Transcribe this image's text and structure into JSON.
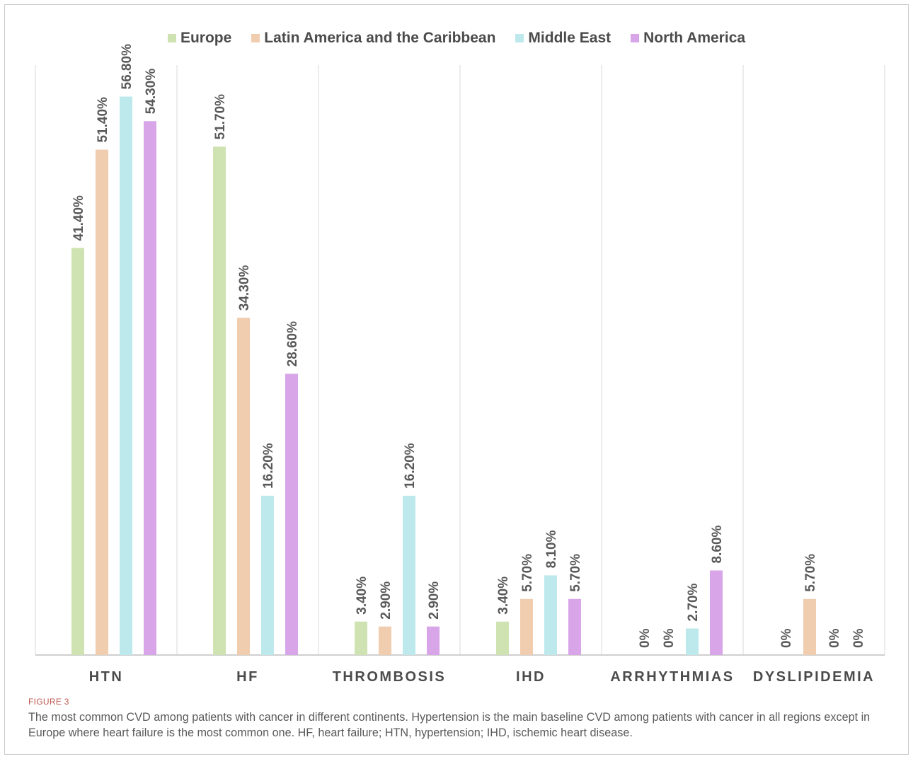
{
  "figure_label": "FIGURE 3",
  "caption": "The most common CVD among patients with cancer in different continents. Hypertension is the main baseline CVD among patients with cancer in all regions except in Europe where heart failure is the most common one. HF, heart failure; HTN, hypertension; IHD, ischemic heart disease.",
  "colors": {
    "Europe": "#cfe2b2",
    "Latin America and the Caribbean": "#f1cdaf",
    "Middle East": "#bde9ec",
    "North America": "#d8a6e8"
  },
  "chart_data": {
    "type": "bar",
    "categories": [
      "HTN",
      "HF",
      "THROMBOSIS",
      "IHD",
      "ARRHYTHMIAS",
      "DYSLIPIDEMIA"
    ],
    "series": [
      {
        "name": "Europe",
        "values": [
          41.4,
          51.7,
          3.4,
          3.4,
          0,
          0
        ],
        "labels": [
          "41.40%",
          "51.70%",
          "3.40%",
          "3.40%",
          "0%",
          "0%"
        ]
      },
      {
        "name": "Latin America and the Caribbean",
        "values": [
          51.4,
          34.3,
          2.9,
          5.7,
          0,
          5.7
        ],
        "labels": [
          "51.40%",
          "34.30%",
          "2.90%",
          "5.70%",
          "0%",
          "5.70%"
        ]
      },
      {
        "name": "Middle East",
        "values": [
          56.8,
          16.2,
          16.2,
          8.1,
          2.7,
          0
        ],
        "labels": [
          "56.80%",
          "16.20%",
          "16.20%",
          "8.10%",
          "2.70%",
          "0%"
        ]
      },
      {
        "name": "North America",
        "values": [
          54.3,
          28.6,
          2.9,
          5.7,
          8.6,
          0
        ],
        "labels": [
          "54.30%",
          "28.60%",
          "2.90%",
          "5.70%",
          "8.60%",
          "0%"
        ]
      }
    ],
    "ylim": [
      0,
      60
    ],
    "legend": "top-center",
    "grid": "vertical category separators"
  }
}
